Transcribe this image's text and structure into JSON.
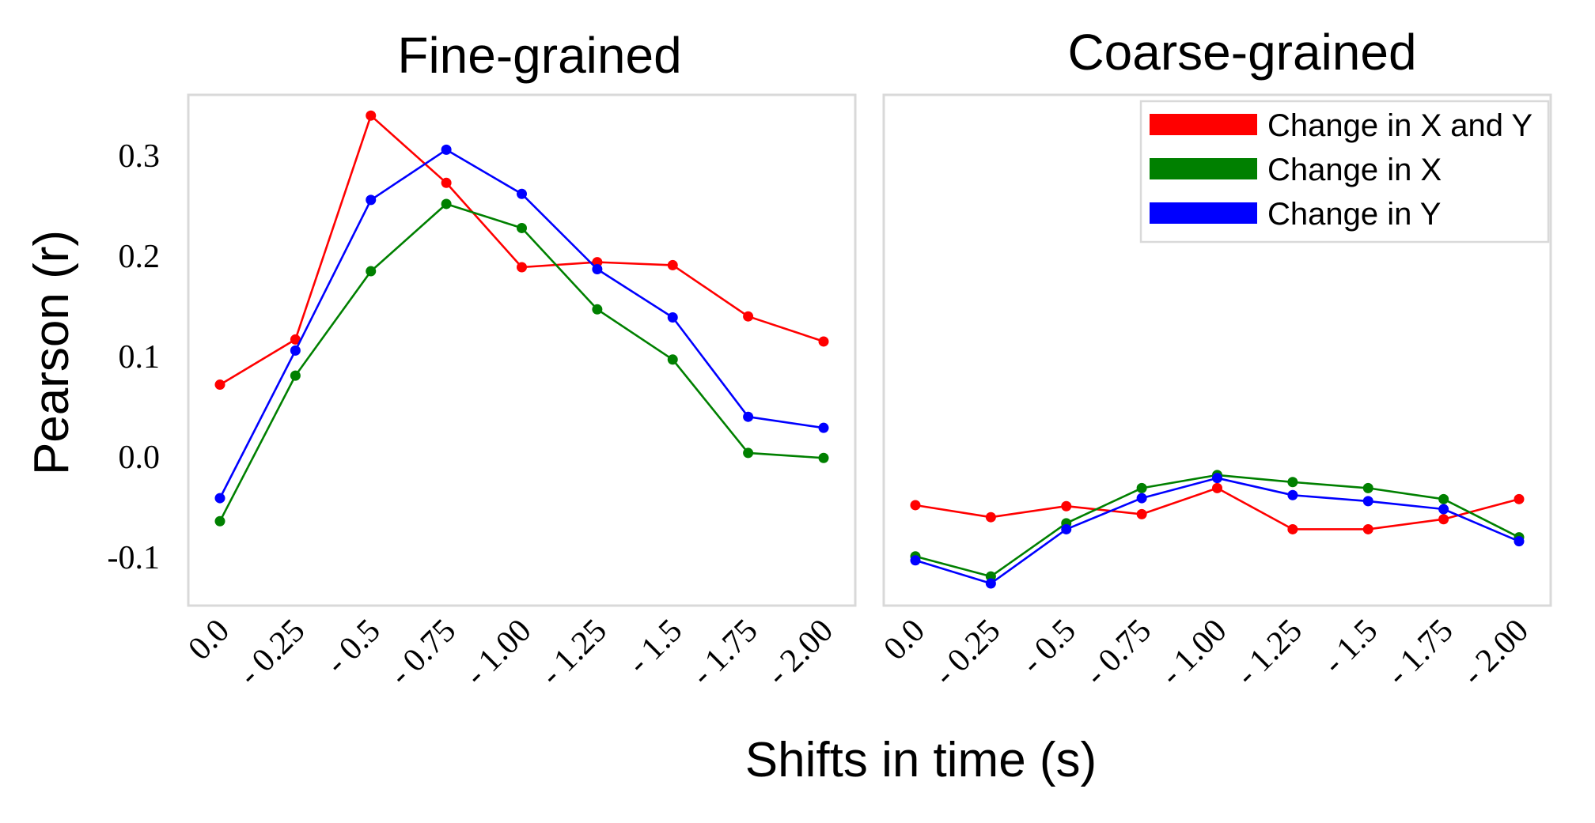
{
  "figure": {
    "xlabel": "Shifts in time (s)",
    "ylabel": "Pearson (r)"
  },
  "chart_data": [
    {
      "type": "line",
      "title": "Fine-grained",
      "categories": [
        "0.0",
        "- 0.25",
        "- 0.5",
        "- 0.75",
        "- 1.00",
        "- 1.25",
        "- 1.5",
        "- 1.75",
        "- 2.00"
      ],
      "yticks": [
        "0.3",
        "0.2",
        "0.1",
        "0.0",
        "-0.1"
      ],
      "ytick_values": [
        0.3,
        0.2,
        0.1,
        0.0,
        -0.1
      ],
      "ylim": [
        -0.15,
        0.36
      ],
      "grid": false,
      "series": [
        {
          "name": "Change in X and Y",
          "color": "#ff0000",
          "values": [
            0.072,
            0.117,
            0.34,
            0.273,
            0.189,
            0.194,
            0.191,
            0.14,
            0.115
          ]
        },
        {
          "name": "Change in X",
          "color": "#008000",
          "values": [
            -0.064,
            0.081,
            0.185,
            0.252,
            0.228,
            0.147,
            0.097,
            0.004,
            -0.001
          ]
        },
        {
          "name": "Change in Y",
          "color": "#0000ff",
          "values": [
            -0.041,
            0.106,
            0.256,
            0.306,
            0.262,
            0.187,
            0.139,
            0.04,
            0.029
          ]
        }
      ]
    },
    {
      "type": "line",
      "title": "Coarse-grained",
      "categories": [
        "0.0",
        "- 0.25",
        "- 0.5",
        "- 0.75",
        "- 1.00",
        "- 1.25",
        "- 1.5",
        "- 1.75",
        "- 2.00"
      ],
      "ylim": [
        -0.15,
        0.36
      ],
      "grid": false,
      "legend": "top-right",
      "series": [
        {
          "name": "Change in X and Y",
          "color": "#ff0000",
          "values": [
            -0.048,
            -0.06,
            -0.049,
            -0.057,
            -0.031,
            -0.072,
            -0.072,
            -0.062,
            -0.042
          ]
        },
        {
          "name": "Change in X",
          "color": "#008000",
          "values": [
            -0.099,
            -0.119,
            -0.066,
            -0.031,
            -0.018,
            -0.025,
            -0.031,
            -0.042,
            -0.08
          ]
        },
        {
          "name": "Change in Y",
          "color": "#0000ff",
          "values": [
            -0.103,
            -0.126,
            -0.072,
            -0.041,
            -0.021,
            -0.038,
            -0.044,
            -0.052,
            -0.084
          ]
        }
      ]
    }
  ]
}
